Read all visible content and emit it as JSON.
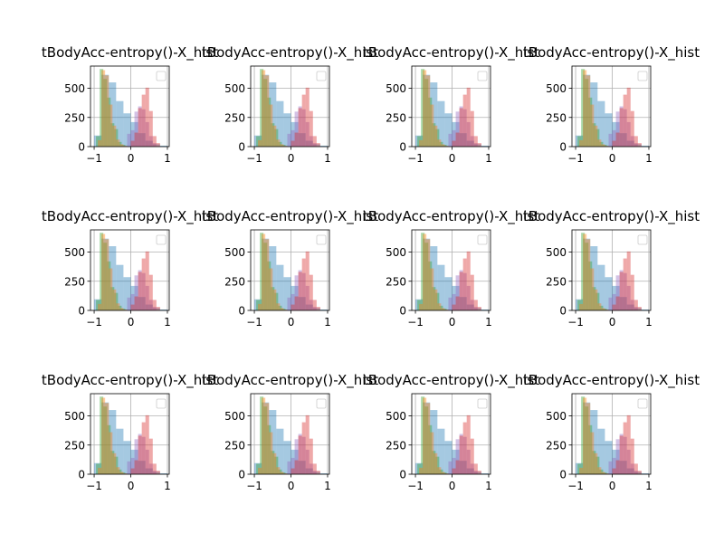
{
  "figure": {
    "rows": 3,
    "cols": 4,
    "background": "#ffffff"
  },
  "chart_data": {
    "type": "bar",
    "subplot_title": "tBodyAcc-entropy()-X_hist",
    "x_ticks": [
      -1,
      0,
      1
    ],
    "y_ticks": [
      0,
      250,
      500
    ],
    "xlim": [
      -1.1,
      1.05
    ],
    "ylim": [
      0,
      690
    ],
    "grid": true,
    "legend": {
      "placement": "upper-right",
      "entries": []
    },
    "series_alpha": 0.4,
    "series": [
      {
        "color": "#1f77b4",
        "bin_edges": [
          -1.0,
          -0.8,
          -0.6,
          -0.4,
          -0.2,
          0.0,
          0.2,
          0.4,
          0.6,
          0.8,
          1.0
        ],
        "values": [
          95,
          615,
          550,
          390,
          285,
          210,
          115,
          50,
          20,
          8
        ]
      },
      {
        "color": "#2ca02c",
        "bin_edges": [
          -0.95,
          -0.85,
          -0.75,
          -0.65,
          -0.55,
          -0.45,
          -0.35,
          -0.25,
          -0.15
        ],
        "values": [
          90,
          665,
          580,
          420,
          200,
          150,
          40,
          15
        ]
      },
      {
        "color": "#ff7f0e",
        "bin_edges": [
          -0.9,
          -0.8,
          -0.7,
          -0.6,
          -0.5,
          -0.4,
          -0.3,
          -0.2,
          -0.1
        ],
        "values": [
          55,
          655,
          610,
          360,
          180,
          60,
          20,
          8
        ]
      },
      {
        "color": "#9467bd",
        "bin_edges": [
          -0.2,
          -0.1,
          0.0,
          0.1,
          0.2,
          0.3,
          0.4,
          0.5,
          0.6,
          0.7
        ],
        "values": [
          5,
          110,
          140,
          300,
          345,
          320,
          210,
          90,
          30
        ]
      },
      {
        "color": "#d62728",
        "bin_edges": [
          0.0,
          0.1,
          0.2,
          0.3,
          0.4,
          0.5,
          0.6,
          0.7,
          0.8
        ],
        "values": [
          50,
          120,
          330,
          445,
          505,
          305,
          90,
          30
        ]
      }
    ]
  }
}
